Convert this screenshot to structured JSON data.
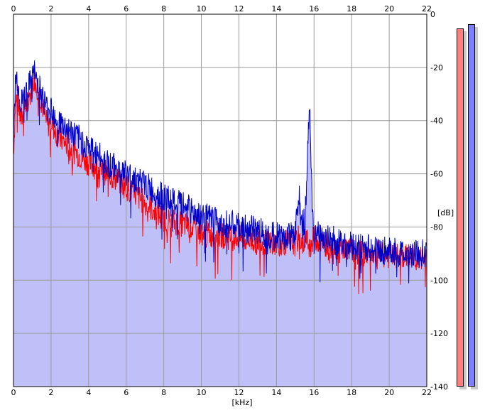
{
  "chart_data": {
    "type": "area",
    "title": "",
    "xlabel": "[kHz]",
    "ylabel": "[dB]",
    "xlim": [
      0,
      22
    ],
    "ylim": [
      -140,
      0
    ],
    "x_ticks": [
      "0",
      "2",
      "4",
      "6",
      "8",
      "10",
      "12",
      "14",
      "16",
      "18",
      "20",
      "22"
    ],
    "y_ticks": [
      "0",
      "-20",
      "-40",
      "-60",
      "-80",
      "-100",
      "-120",
      "-140"
    ],
    "grid": true,
    "x_axis_top": true,
    "y_axis_side": "right",
    "fill_color": "#c0c0f8",
    "series": [
      {
        "color": "#ff0000",
        "points": [
          [
            0.0,
            -52
          ],
          [
            0.1,
            -35
          ],
          [
            0.2,
            -30
          ],
          [
            0.3,
            -36
          ],
          [
            0.4,
            -40
          ],
          [
            0.5,
            -38
          ],
          [
            0.6,
            -35
          ],
          [
            0.8,
            -33
          ],
          [
            1.0,
            -27
          ],
          [
            1.1,
            -24
          ],
          [
            1.2,
            -26
          ],
          [
            1.4,
            -30
          ],
          [
            1.6,
            -36
          ],
          [
            1.8,
            -42
          ],
          [
            2.0,
            -40
          ],
          [
            2.2,
            -44
          ],
          [
            2.5,
            -47
          ],
          [
            3.0,
            -50
          ],
          [
            3.5,
            -53
          ],
          [
            4.0,
            -56
          ],
          [
            4.5,
            -58
          ],
          [
            5.0,
            -60
          ],
          [
            5.5,
            -62
          ],
          [
            6.0,
            -65
          ],
          [
            6.5,
            -68
          ],
          [
            7.0,
            -71
          ],
          [
            7.5,
            -74
          ],
          [
            8.0,
            -77
          ],
          [
            8.5,
            -78
          ],
          [
            9.0,
            -79
          ],
          [
            9.5,
            -80
          ],
          [
            10.0,
            -82
          ],
          [
            10.5,
            -83
          ],
          [
            11.0,
            -83
          ],
          [
            11.5,
            -84
          ],
          [
            12.0,
            -84
          ],
          [
            12.5,
            -85
          ],
          [
            13.0,
            -85
          ],
          [
            13.5,
            -86
          ],
          [
            14.0,
            -86
          ],
          [
            14.5,
            -86
          ],
          [
            15.0,
            -86
          ],
          [
            15.2,
            -84
          ],
          [
            15.4,
            -86
          ],
          [
            15.6,
            -85
          ],
          [
            15.8,
            -87
          ],
          [
            16.0,
            -84
          ],
          [
            16.5,
            -86
          ],
          [
            17.0,
            -87
          ],
          [
            17.5,
            -88
          ],
          [
            18.0,
            -89
          ],
          [
            18.5,
            -90
          ],
          [
            19.0,
            -90
          ],
          [
            19.5,
            -90
          ],
          [
            20.0,
            -91
          ],
          [
            20.5,
            -91
          ],
          [
            21.0,
            -91
          ],
          [
            21.5,
            -92
          ],
          [
            22.0,
            -92
          ]
        ]
      },
      {
        "color": "#0000cc",
        "points": [
          [
            0.0,
            -50
          ],
          [
            0.1,
            -25
          ],
          [
            0.2,
            -24
          ],
          [
            0.3,
            -30
          ],
          [
            0.4,
            -34
          ],
          [
            0.5,
            -32
          ],
          [
            0.6,
            -30
          ],
          [
            0.8,
            -28
          ],
          [
            1.0,
            -23
          ],
          [
            1.1,
            -22
          ],
          [
            1.2,
            -24
          ],
          [
            1.4,
            -28
          ],
          [
            1.6,
            -32
          ],
          [
            1.8,
            -36
          ],
          [
            2.0,
            -34
          ],
          [
            2.2,
            -38
          ],
          [
            2.5,
            -41
          ],
          [
            3.0,
            -44
          ],
          [
            3.5,
            -47
          ],
          [
            4.0,
            -50
          ],
          [
            4.5,
            -53
          ],
          [
            5.0,
            -56
          ],
          [
            5.5,
            -58
          ],
          [
            6.0,
            -60
          ],
          [
            6.5,
            -62
          ],
          [
            7.0,
            -64
          ],
          [
            7.5,
            -67
          ],
          [
            8.0,
            -69
          ],
          [
            8.5,
            -71
          ],
          [
            9.0,
            -72
          ],
          [
            9.5,
            -74
          ],
          [
            10.0,
            -76
          ],
          [
            10.5,
            -77
          ],
          [
            11.0,
            -78
          ],
          [
            11.5,
            -79
          ],
          [
            12.0,
            -80
          ],
          [
            12.5,
            -81
          ],
          [
            13.0,
            -81
          ],
          [
            13.5,
            -83
          ],
          [
            14.0,
            -83
          ],
          [
            14.5,
            -84
          ],
          [
            15.0,
            -82
          ],
          [
            15.2,
            -67
          ],
          [
            15.3,
            -80
          ],
          [
            15.5,
            -78
          ],
          [
            15.6,
            -65
          ],
          [
            15.7,
            -45
          ],
          [
            15.75,
            -32
          ],
          [
            15.8,
            -40
          ],
          [
            15.9,
            -72
          ],
          [
            16.0,
            -82
          ],
          [
            16.5,
            -84
          ],
          [
            17.0,
            -85
          ],
          [
            17.5,
            -86
          ],
          [
            18.0,
            -87
          ],
          [
            18.5,
            -88
          ],
          [
            19.0,
            -88
          ],
          [
            19.5,
            -89
          ],
          [
            20.0,
            -89
          ],
          [
            20.5,
            -90
          ],
          [
            21.0,
            -90
          ],
          [
            21.5,
            -90
          ],
          [
            22.0,
            -90
          ]
        ]
      }
    ]
  },
  "level_meters": [
    {
      "color": "#ff8080"
    },
    {
      "color": "#8080ff"
    }
  ]
}
